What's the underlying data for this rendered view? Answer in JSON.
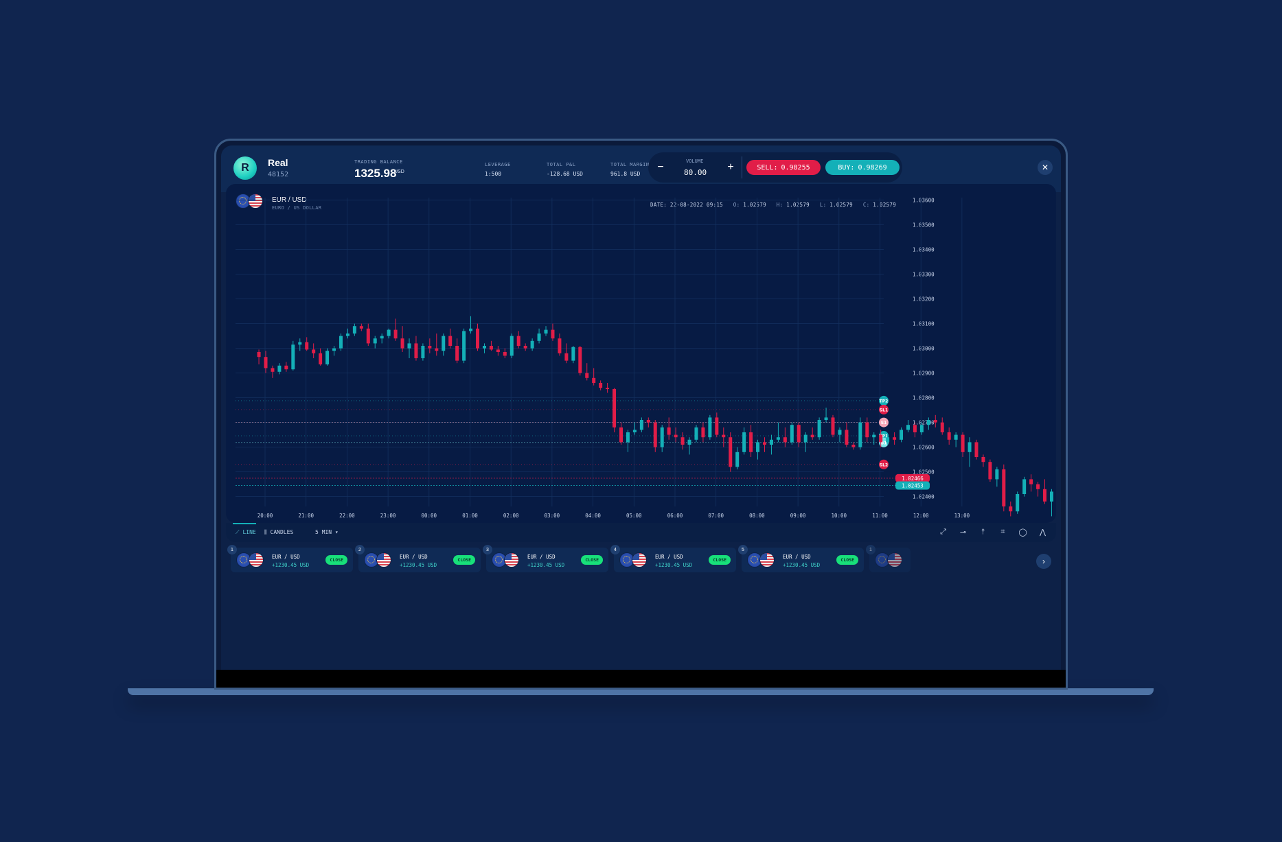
{
  "account": {
    "name": "Real",
    "id": "48152",
    "logo_letter": "R"
  },
  "balance": {
    "label": "TRADING BALANCE",
    "value": "1325.98",
    "currency": "USD"
  },
  "leverage": {
    "label": "LEVERAGE",
    "value": "1:500"
  },
  "total_pnl": {
    "label": "TOTAL P&L",
    "value": "-128.68 USD"
  },
  "total_margin": {
    "label": "TOTAL MARGIN",
    "value": "961.8 USD"
  },
  "volume": {
    "label": "VOLUME",
    "value": "80.00",
    "minus": "−",
    "plus": "+"
  },
  "sell": {
    "label": "SELL:",
    "price": "0.98255",
    "color": "#e11d48"
  },
  "buy": {
    "label": "BUY:",
    "price": "0.98269",
    "color": "#14b0b8"
  },
  "close_icon": "✕",
  "pair": {
    "title": "EUR / USD",
    "subtitle": "EURO / US DOLLAR"
  },
  "ohlc": {
    "date_label": "DATE:",
    "date": "22-08-2022 09:15",
    "o_label": "O:",
    "o": "1.02579",
    "h_label": "H:",
    "h": "1.02579",
    "l_label": "L:",
    "l": "1.02579",
    "c_label": "C:",
    "c": "1.02579"
  },
  "chart_data": {
    "type": "candlestick",
    "x_ticks": [
      "20:00",
      "21:00",
      "22:00",
      "23:00",
      "00:00",
      "01:00",
      "02:00",
      "03:00",
      "04:00",
      "05:00",
      "06:00",
      "07:00",
      "08:00",
      "09:00",
      "10:00",
      "11:00",
      "12:00",
      "13:00"
    ],
    "y_ticks": [
      "1.03600",
      "1.03500",
      "1.03400",
      "1.03300",
      "1.03200",
      "1.03100",
      "1.03000",
      "1.02900",
      "1.02800",
      "1.02700",
      "1.02600",
      "1.02500",
      "1.02400"
    ],
    "ylim": [
      1.0236,
      1.0361
    ],
    "x_start_hour": 19.85,
    "x_per_candle_hours": 0.1667,
    "up_color": "#14b0b8",
    "down_color": "#e11d48",
    "candles": [
      [
        1.02985,
        1.02995,
        1.02935,
        1.02965
      ],
      [
        1.02965,
        1.0299,
        1.029,
        1.0292
      ],
      [
        1.0292,
        1.0293,
        1.0288,
        1.02905
      ],
      [
        1.02905,
        1.0294,
        1.02895,
        1.0293
      ],
      [
        1.0293,
        1.02945,
        1.02905,
        1.02915
      ],
      [
        1.02915,
        1.0303,
        1.0291,
        1.03015
      ],
      [
        1.03015,
        1.0304,
        1.0299,
        1.03025
      ],
      [
        1.03025,
        1.03045,
        1.0299,
        1.02995
      ],
      [
        1.02995,
        1.0302,
        1.0296,
        1.0298
      ],
      [
        1.0298,
        1.03,
        1.0293,
        1.02935
      ],
      [
        1.02935,
        1.03,
        1.0293,
        1.0299
      ],
      [
        1.0299,
        1.0301,
        1.0297,
        1.03
      ],
      [
        1.03,
        1.0306,
        1.0299,
        1.0305
      ],
      [
        1.0305,
        1.0308,
        1.0304,
        1.0306
      ],
      [
        1.0306,
        1.031,
        1.0305,
        1.0309
      ],
      [
        1.0309,
        1.031,
        1.0307,
        1.0308
      ],
      [
        1.0308,
        1.031,
        1.0301,
        1.0302
      ],
      [
        1.0302,
        1.0305,
        1.03,
        1.0304
      ],
      [
        1.0304,
        1.0306,
        1.0302,
        1.0305
      ],
      [
        1.0305,
        1.0308,
        1.0304,
        1.03075
      ],
      [
        1.03075,
        1.0312,
        1.0303,
        1.0304
      ],
      [
        1.0304,
        1.0309,
        1.02985,
        1.03
      ],
      [
        1.03,
        1.0304,
        1.0296,
        1.0302
      ],
      [
        1.0302,
        1.0305,
        1.0295,
        1.0296
      ],
      [
        1.0296,
        1.0302,
        1.0295,
        1.0301
      ],
      [
        1.0301,
        1.0304,
        1.0298,
        1.03
      ],
      [
        1.03,
        1.0306,
        1.0297,
        1.0299
      ],
      [
        1.0299,
        1.0306,
        1.0297,
        1.0305
      ],
      [
        1.0305,
        1.0308,
        1.03,
        1.0301
      ],
      [
        1.0301,
        1.0304,
        1.0294,
        1.0295
      ],
      [
        1.0295,
        1.0308,
        1.0294,
        1.0307
      ],
      [
        1.0307,
        1.0313,
        1.0306,
        1.0308
      ],
      [
        1.0308,
        1.031,
        1.0299,
        1.03
      ],
      [
        1.03,
        1.0302,
        1.0298,
        1.0301
      ],
      [
        1.0301,
        1.0303,
        1.0299,
        1.02995
      ],
      [
        1.02995,
        1.0301,
        1.0297,
        1.02985
      ],
      [
        1.02985,
        1.03,
        1.0296,
        1.0297
      ],
      [
        1.0297,
        1.0306,
        1.0296,
        1.0305
      ],
      [
        1.0305,
        1.0307,
        1.03,
        1.0301
      ],
      [
        1.0301,
        1.0302,
        1.0299,
        1.03
      ],
      [
        1.03,
        1.0304,
        1.0299,
        1.0303
      ],
      [
        1.0303,
        1.0308,
        1.0302,
        1.0306
      ],
      [
        1.0306,
        1.0309,
        1.0305,
        1.03075
      ],
      [
        1.03075,
        1.031,
        1.0303,
        1.0304
      ],
      [
        1.0304,
        1.0306,
        1.0297,
        1.0298
      ],
      [
        1.0298,
        1.0302,
        1.0294,
        1.0295
      ],
      [
        1.0295,
        1.0301,
        1.0294,
        1.03005
      ],
      [
        1.03005,
        1.0301,
        1.0289,
        1.029
      ],
      [
        1.029,
        1.0294,
        1.0287,
        1.0288
      ],
      [
        1.0288,
        1.0292,
        1.0285,
        1.0286
      ],
      [
        1.0286,
        1.0287,
        1.0283,
        1.0284
      ],
      [
        1.0284,
        1.0286,
        1.0282,
        1.02835
      ],
      [
        1.02835,
        1.0284,
        1.0266,
        1.0268
      ],
      [
        1.0268,
        1.027,
        1.0261,
        1.0262
      ],
      [
        1.0262,
        1.0267,
        1.0258,
        1.0266
      ],
      [
        1.0266,
        1.027,
        1.0265,
        1.0267
      ],
      [
        1.0267,
        1.0272,
        1.0266,
        1.0271
      ],
      [
        1.0271,
        1.0272,
        1.0268,
        1.027
      ],
      [
        1.027,
        1.0271,
        1.0258,
        1.026
      ],
      [
        1.026,
        1.0269,
        1.0258,
        1.0268
      ],
      [
        1.0268,
        1.0272,
        1.0263,
        1.0265
      ],
      [
        1.0265,
        1.0268,
        1.0262,
        1.0264
      ],
      [
        1.0264,
        1.0266,
        1.0259,
        1.0261
      ],
      [
        1.0261,
        1.0264,
        1.0257,
        1.0263
      ],
      [
        1.0263,
        1.0269,
        1.0262,
        1.0268
      ],
      [
        1.0268,
        1.027,
        1.0262,
        1.0264
      ],
      [
        1.0264,
        1.0273,
        1.0263,
        1.0272
      ],
      [
        1.0272,
        1.0274,
        1.0264,
        1.0265
      ],
      [
        1.0265,
        1.0268,
        1.026,
        1.0264
      ],
      [
        1.0264,
        1.0266,
        1.025,
        1.0252
      ],
      [
        1.0252,
        1.026,
        1.0251,
        1.0258
      ],
      [
        1.0258,
        1.0268,
        1.0257,
        1.0266
      ],
      [
        1.0266,
        1.0269,
        1.0256,
        1.0258
      ],
      [
        1.0258,
        1.0263,
        1.0255,
        1.0262
      ],
      [
        1.0262,
        1.0264,
        1.0258,
        1.0261
      ],
      [
        1.0261,
        1.0265,
        1.0257,
        1.0263
      ],
      [
        1.0263,
        1.027,
        1.0262,
        1.0264
      ],
      [
        1.0264,
        1.0268,
        1.026,
        1.0262
      ],
      [
        1.0262,
        1.027,
        1.0261,
        1.0269
      ],
      [
        1.0269,
        1.027,
        1.026,
        1.0262
      ],
      [
        1.0262,
        1.0266,
        1.0258,
        1.0265
      ],
      [
        1.0265,
        1.0268,
        1.0263,
        1.0264
      ],
      [
        1.0264,
        1.0272,
        1.0263,
        1.0271
      ],
      [
        1.0271,
        1.0276,
        1.027,
        1.0272
      ],
      [
        1.0272,
        1.0273,
        1.0264,
        1.0265
      ],
      [
        1.0265,
        1.0268,
        1.0262,
        1.0267
      ],
      [
        1.0267,
        1.027,
        1.026,
        1.0261
      ],
      [
        1.0261,
        1.0262,
        1.0259,
        1.026
      ],
      [
        1.026,
        1.0272,
        1.0259,
        1.027
      ],
      [
        1.027,
        1.0272,
        1.0262,
        1.0264
      ],
      [
        1.0264,
        1.0266,
        1.0261,
        1.0265
      ],
      [
        1.0265,
        1.0267,
        1.026,
        1.0262
      ],
      [
        1.0262,
        1.0265,
        1.0261,
        1.0264
      ],
      [
        1.0264,
        1.0266,
        1.0261,
        1.0263
      ],
      [
        1.0263,
        1.0268,
        1.0262,
        1.0267
      ],
      [
        1.0267,
        1.0271,
        1.0266,
        1.0269
      ],
      [
        1.0269,
        1.027,
        1.0264,
        1.0266
      ],
      [
        1.0266,
        1.027,
        1.0265,
        1.0269
      ],
      [
        1.0269,
        1.0272,
        1.0267,
        1.0271
      ],
      [
        1.0271,
        1.0273,
        1.0268,
        1.027
      ],
      [
        1.027,
        1.0272,
        1.0265,
        1.0266
      ],
      [
        1.0266,
        1.0268,
        1.0261,
        1.0263
      ],
      [
        1.0263,
        1.0266,
        1.026,
        1.0265
      ],
      [
        1.0265,
        1.0266,
        1.0256,
        1.0258
      ],
      [
        1.0258,
        1.0264,
        1.0252,
        1.0262
      ],
      [
        1.0262,
        1.0263,
        1.0255,
        1.0256
      ],
      [
        1.0256,
        1.0257,
        1.0252,
        1.0254
      ],
      [
        1.0254,
        1.0255,
        1.0246,
        1.0247
      ],
      [
        1.0247,
        1.0252,
        1.0244,
        1.0251
      ],
      [
        1.0251,
        1.0253,
        1.0234,
        1.0236
      ],
      [
        1.0236,
        1.0238,
        1.0232,
        1.0234
      ],
      [
        1.0234,
        1.0242,
        1.0233,
        1.0241
      ],
      [
        1.0241,
        1.0248,
        1.024,
        1.0247
      ],
      [
        1.0247,
        1.0249,
        1.0242,
        1.0245
      ],
      [
        1.0245,
        1.0246,
        1.024,
        1.0243
      ],
      [
        1.0243,
        1.0247,
        1.0237,
        1.0238
      ],
      [
        1.0238,
        1.0243,
        1.0232,
        1.0242
      ],
      [
        1.0242,
        1.0244,
        1.0235,
        1.0236
      ],
      [
        1.0236,
        1.0239,
        1.0233,
        1.0237
      ],
      [
        1.0237,
        1.0248,
        1.0236,
        1.0247
      ],
      [
        1.0247,
        1.0249,
        1.0244,
        1.0246
      ],
      [
        1.0246,
        1.0248,
        1.0242,
        1.0244
      ],
      [
        1.0244,
        1.0249,
        1.0238,
        1.024
      ],
      [
        1.024,
        1.0245,
        1.0239,
        1.0244
      ],
      [
        1.0244,
        1.0249,
        1.0243,
        1.0247
      ],
      [
        1.0247,
        1.0249,
        1.0245,
        1.02466
      ]
    ],
    "levels": [
      {
        "label": "TP2",
        "value": 1.02788,
        "color": "#14b0b8",
        "style": "dotted"
      },
      {
        "label": "SL1",
        "value": 1.02752,
        "color": "#e11d48",
        "style": "dotted"
      },
      {
        "label": "S1",
        "value": 1.027,
        "color": "#f7a8b8",
        "style": "dashed"
      },
      {
        "label": "TP1",
        "value": 1.02646,
        "color": "#14b0b8",
        "style": "dotted"
      },
      {
        "label": "B1",
        "value": 1.02619,
        "color": "#7ee6e8",
        "style": "dashed"
      },
      {
        "label": "SL2",
        "value": 1.0253,
        "color": "#e11d48",
        "style": "dotted"
      }
    ],
    "entry_markers": [
      {
        "label": "S1",
        "time": 9.5,
        "value": 1.027,
        "color": "#f7a8b8"
      },
      {
        "label": "B1",
        "time": 7.75,
        "value": 1.02619,
        "color": "#7ee6e8"
      }
    ],
    "current_prices": [
      {
        "value": 1.02466,
        "color": "#e11d48",
        "text": "1.02466"
      },
      {
        "value": 1.02453,
        "color": "#14b0b8",
        "text": "1.02453"
      }
    ],
    "event_flags": [
      {
        "time": 10.0
      },
      {
        "time": 12.0
      }
    ]
  },
  "toolbar": {
    "line_label": "LINE",
    "candles_label": "CANDLES",
    "interval_label": "5 MIN",
    "tools": [
      "trendline-icon",
      "horizontal-line-icon",
      "vertical-line-icon",
      "rectangle-icon",
      "circle-icon",
      "path-icon"
    ]
  },
  "positions": [
    {
      "num": "1",
      "pair": "EUR / USD",
      "pnl": "+1230.45 USD",
      "close": "CLOSE"
    },
    {
      "num": "2",
      "pair": "EUR / USD",
      "pnl": "+1230.45 USD",
      "close": "CLOSE"
    },
    {
      "num": "3",
      "pair": "EUR / USD",
      "pnl": "+1230.45 USD",
      "close": "CLOSE"
    },
    {
      "num": "4",
      "pair": "EUR / USD",
      "pnl": "+1230.45 USD",
      "close": "CLOSE"
    },
    {
      "num": "5",
      "pair": "EUR / USD",
      "pnl": "+1230.45 USD",
      "close": "CLOSE"
    },
    {
      "num": "1"
    }
  ],
  "next_icon": "›"
}
